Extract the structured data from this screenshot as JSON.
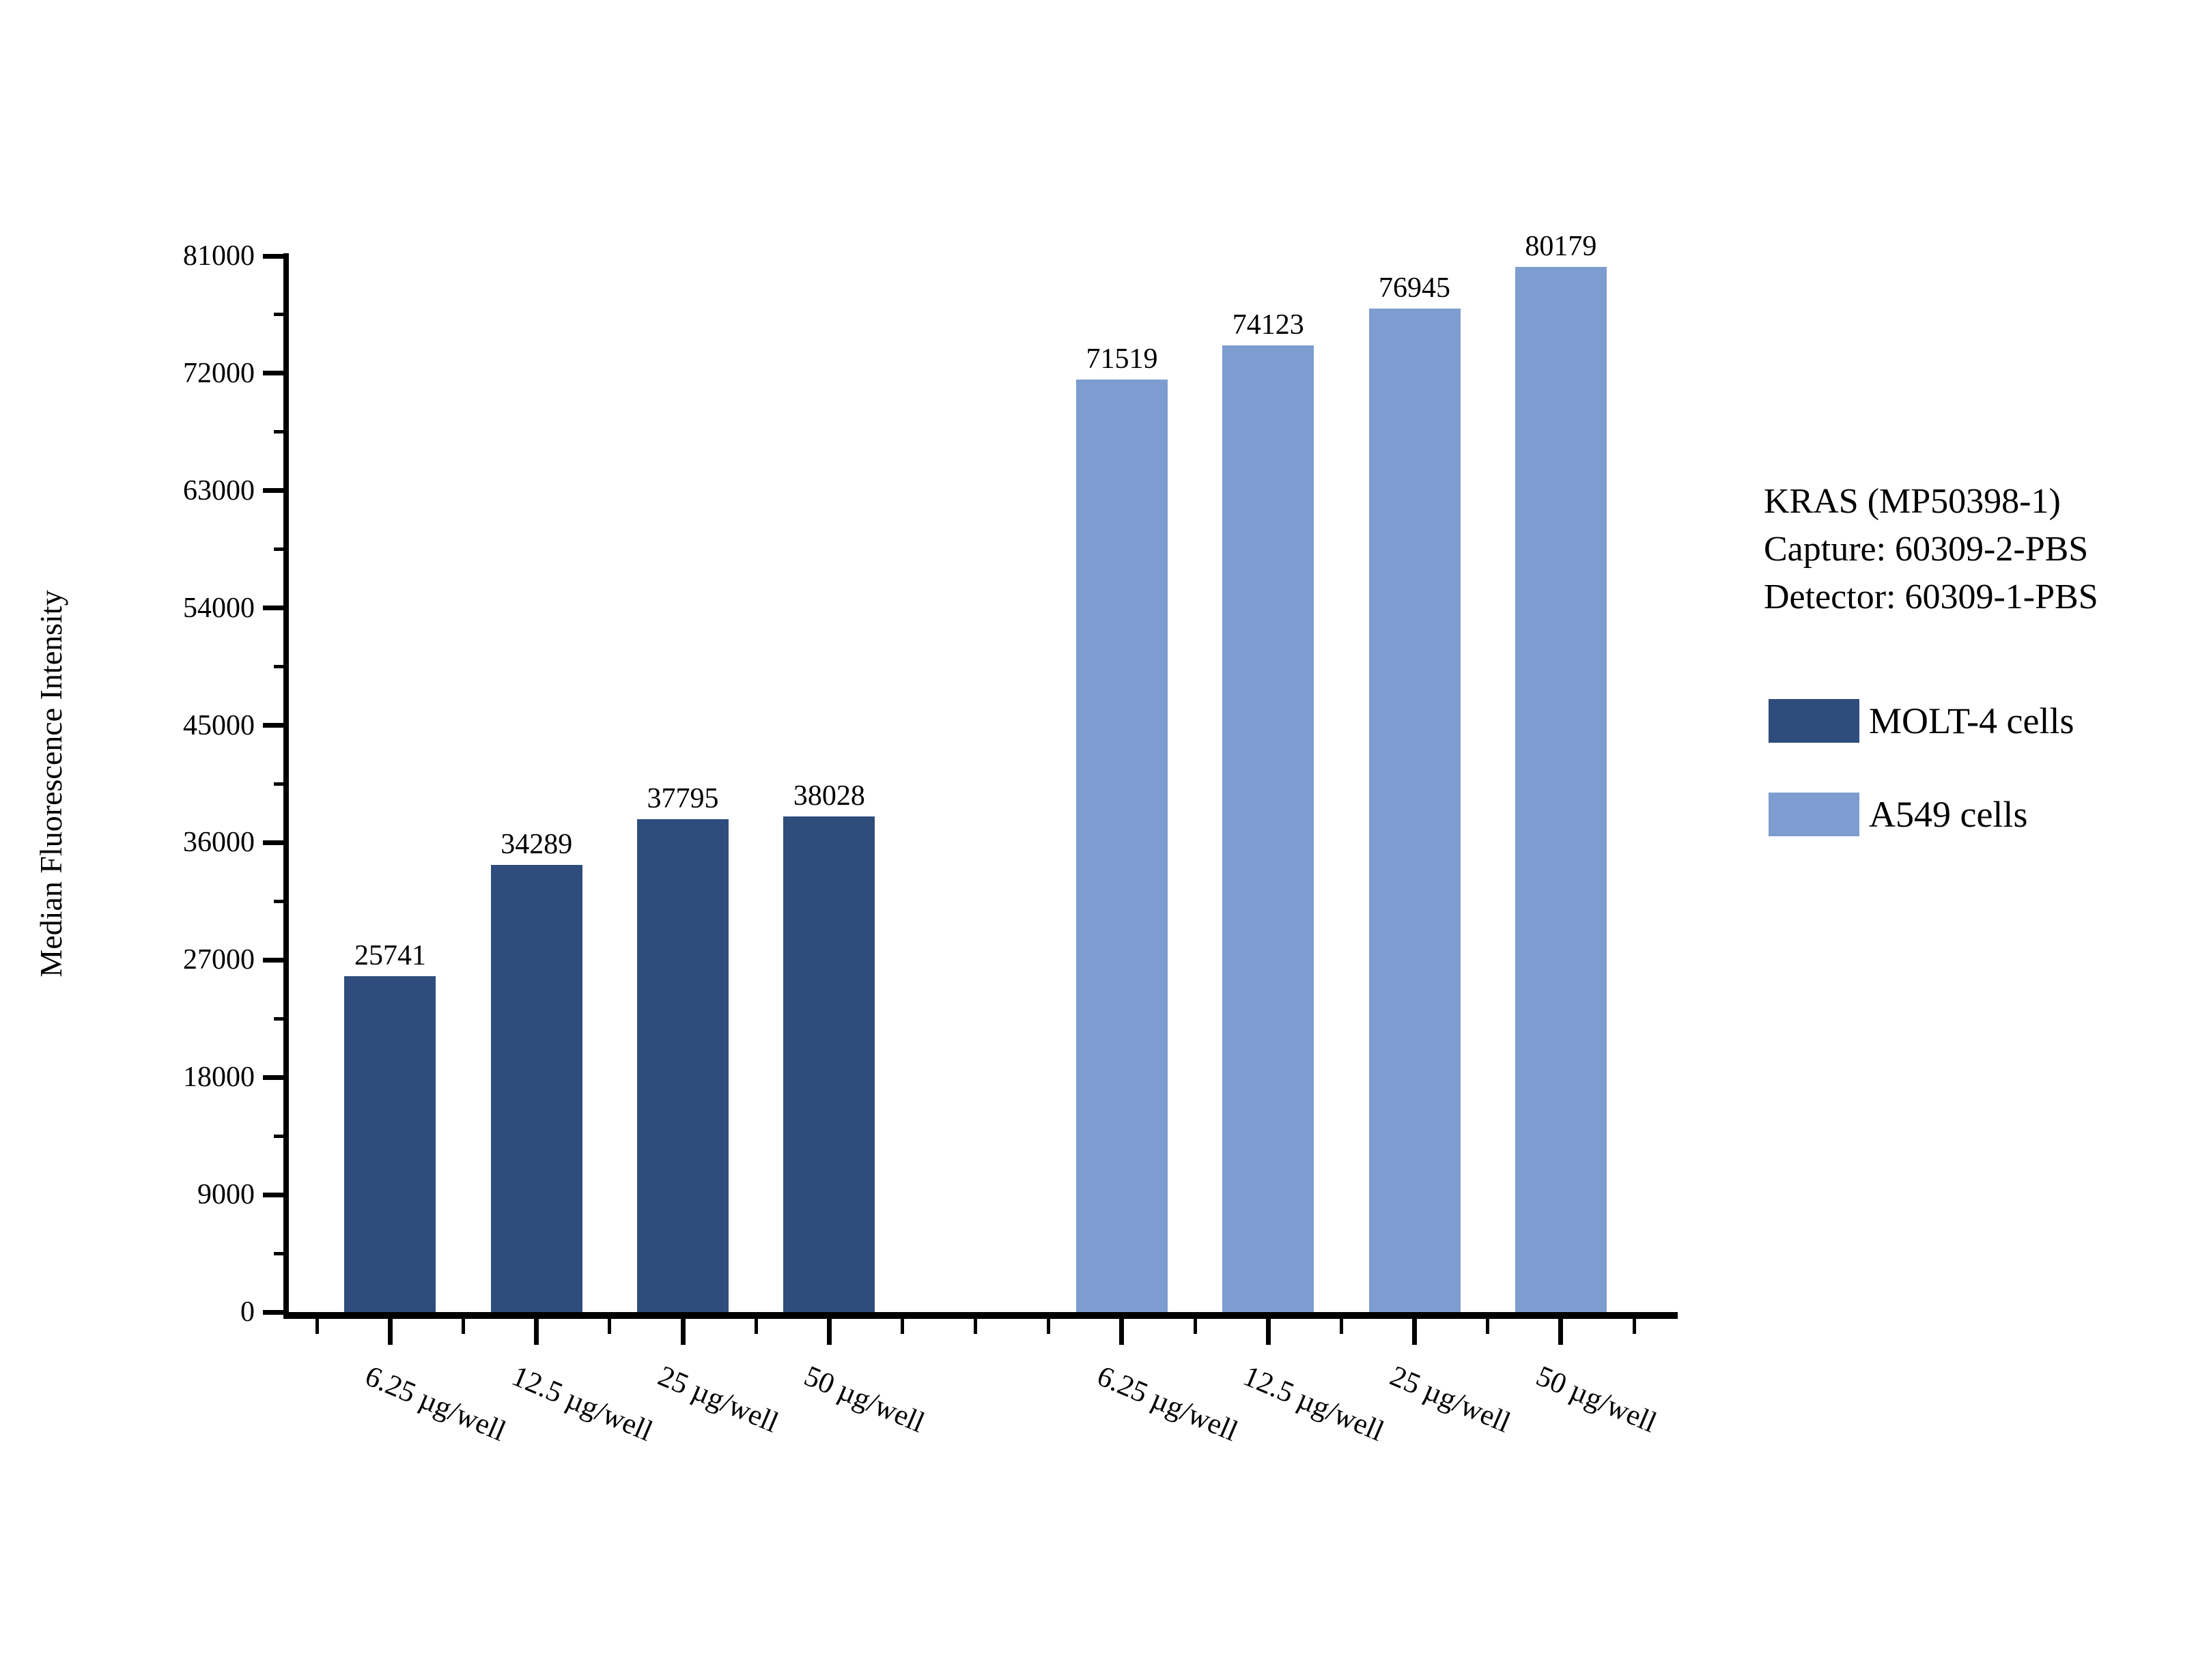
{
  "chart_data": {
    "type": "bar",
    "title": "",
    "ylabel": "Median Fluorescence Intensity",
    "xlabel": "",
    "ylim": [
      0,
      81000
    ],
    "y_major_step": 9000,
    "y_minor_step": 4500,
    "y_major_ticks": [
      0,
      9000,
      18000,
      27000,
      36000,
      45000,
      54000,
      63000,
      72000,
      81000
    ],
    "grid": false,
    "legend_position": "right",
    "categories": [
      "6.25 µg/well",
      "12.5 µg/well",
      "25 µg/well",
      "50 µg/well"
    ],
    "series": [
      {
        "name": "MOLT-4 cells",
        "color": "#2F4D7C",
        "values": [
          25741,
          34289,
          37795,
          38028
        ]
      },
      {
        "name": "A549 cells",
        "color": "#7D9DD0",
        "values": [
          71519,
          74123,
          76945,
          80179
        ]
      }
    ],
    "bar_value_labels": [
      25741,
      34289,
      37795,
      38028,
      71519,
      74123,
      76945,
      80179
    ],
    "annotation": {
      "line1": "KRAS (MP50398-1)",
      "line2": "Capture: 60309-2-PBS",
      "line3": "Detector: 60309-1-PBS"
    }
  }
}
